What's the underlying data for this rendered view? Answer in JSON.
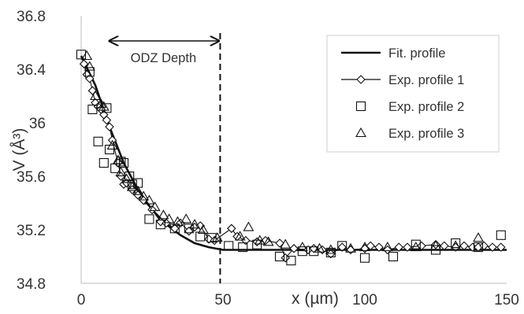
{
  "chart_data": {
    "type": "scatter",
    "xlabel": "x (µm)",
    "ylabel": "V (Å³)",
    "xlim": [
      0,
      150
    ],
    "ylim": [
      34.8,
      36.8
    ],
    "x_ticks": [
      "0",
      "50",
      "100",
      "150"
    ],
    "y_ticks": [
      "36.8",
      "36.4",
      "36",
      "35.6",
      "35.2",
      "34.8"
    ],
    "grid": false,
    "legend": "top-right",
    "annotations": {
      "odz_label": "ODZ Depth",
      "odz_arrow_from_x": 10,
      "odz_arrow_to_x": 48,
      "odz_boundary_x": 49
    },
    "series": [
      {
        "name": "Fit. profile",
        "kind": "line",
        "color": "#111111",
        "x": [
          0,
          5,
          10,
          15,
          20,
          25,
          30,
          35,
          40,
          45,
          50,
          55,
          60,
          80,
          100,
          120,
          150
        ],
        "y": [
          36.5,
          36.28,
          35.97,
          35.7,
          35.5,
          35.35,
          35.24,
          35.16,
          35.1,
          35.07,
          35.05,
          35.05,
          35.05,
          35.05,
          35.05,
          35.05,
          35.05
        ]
      },
      {
        "name": "Exp. profile 1",
        "kind": "line-marker",
        "marker": "diamond",
        "color": "#111111",
        "x": [
          1,
          2,
          3,
          4,
          5,
          6,
          7,
          8,
          9,
          10,
          11,
          13,
          14,
          15,
          16,
          18,
          20,
          22,
          25,
          28,
          30,
          33,
          35,
          38,
          40,
          42,
          45,
          47,
          53,
          55,
          58,
          62,
          65,
          70,
          72,
          75,
          80,
          82,
          85,
          88,
          92,
          95,
          100,
          102,
          105,
          108,
          112,
          115,
          120,
          125,
          128,
          132,
          135,
          138,
          140,
          142,
          145,
          148
        ],
        "y": [
          36.44,
          36.36,
          36.33,
          36.24,
          36.15,
          36.12,
          36.1,
          36.06,
          36.02,
          35.97,
          35.87,
          35.7,
          35.6,
          35.54,
          35.55,
          35.5,
          35.46,
          35.42,
          35.35,
          35.26,
          35.25,
          35.21,
          35.25,
          35.19,
          35.22,
          35.23,
          35.13,
          35.12,
          35.21,
          35.15,
          35.12,
          35.11,
          35.12,
          35.1,
          34.99,
          35.06,
          35.05,
          35.06,
          35.05,
          35.02,
          35.07,
          35.05,
          35.06,
          35.08,
          35.07,
          35.05,
          35.07,
          35.07,
          35.08,
          35.09,
          35.08,
          35.07,
          35.08,
          35.07,
          35.07,
          35.08,
          35.07,
          35.07
        ]
      },
      {
        "name": "Exp. profile 2",
        "kind": "marker",
        "marker": "square",
        "color": "#111111",
        "x": [
          0,
          3,
          4,
          6,
          8,
          9,
          10,
          12,
          14,
          15,
          17,
          18,
          20,
          24,
          28,
          33,
          38,
          42,
          46,
          52,
          57,
          62,
          70,
          74,
          78,
          82,
          88,
          92,
          100,
          110,
          118,
          125,
          132,
          140,
          148
        ],
        "y": [
          36.51,
          36.38,
          36.1,
          35.86,
          35.7,
          36.11,
          35.8,
          35.66,
          35.71,
          35.7,
          35.6,
          35.54,
          35.55,
          35.28,
          35.24,
          35.21,
          35.21,
          35.15,
          35.14,
          35.08,
          35.07,
          35.09,
          35.0,
          34.97,
          35.04,
          35.04,
          35.03,
          35.08,
          34.99,
          35.0,
          35.09,
          35.05,
          35.1,
          35.07,
          35.16
        ]
      },
      {
        "name": "Exp. profile 3",
        "kind": "marker",
        "marker": "triangle",
        "color": "#111111",
        "x": [
          2,
          3,
          5,
          7,
          8,
          11,
          13,
          14,
          16,
          18,
          20,
          22,
          24,
          26,
          29,
          31,
          34,
          37,
          40,
          43,
          48,
          56,
          59,
          63,
          66,
          72,
          78,
          84,
          88,
          95,
          100,
          108,
          118,
          125,
          132,
          140
        ],
        "y": [
          36.5,
          36.42,
          36.2,
          36.14,
          36.12,
          35.83,
          35.72,
          35.63,
          35.58,
          35.52,
          35.49,
          35.45,
          35.42,
          35.37,
          35.31,
          35.28,
          35.26,
          35.28,
          35.24,
          35.2,
          35.14,
          35.15,
          35.22,
          35.12,
          35.11,
          35.09,
          35.07,
          35.06,
          35.05,
          35.06,
          35.07,
          35.07,
          35.07,
          35.08,
          35.08,
          35.14
        ]
      }
    ]
  }
}
